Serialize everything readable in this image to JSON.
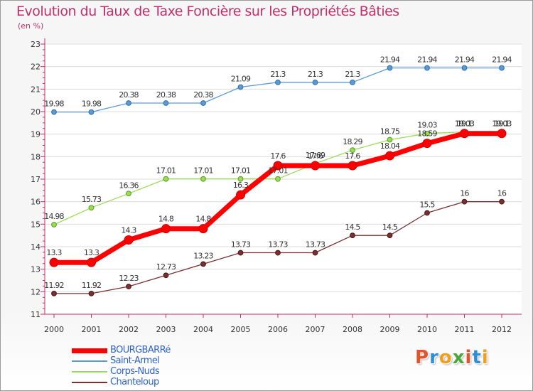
{
  "header": {
    "title": "Evolution du Taux de Taxe Foncière sur les Propriétés Bâties",
    "subtitle": "(en %)"
  },
  "chart_data": {
    "type": "line",
    "title": "Evolution du Taux de Taxe Foncière sur les Propriétés Bâties",
    "subtitle": "(en %)",
    "xlabel": "",
    "ylabel": "(en %)",
    "x": [
      "2000",
      "2001",
      "2002",
      "2003",
      "2004",
      "2005",
      "2006",
      "2007",
      "2008",
      "2009",
      "2010",
      "2011",
      "2012"
    ],
    "ylim": [
      11,
      23
    ],
    "yticks": [
      11,
      12,
      13,
      14,
      15,
      16,
      17,
      18,
      19,
      20,
      21,
      22,
      23
    ],
    "grid": "horizontal",
    "legend_position": "bottom-left",
    "series": [
      {
        "name": "BOURGBARRé",
        "color": "#ff0000",
        "values": [
          13.3,
          13.3,
          14.3,
          14.8,
          14.8,
          16.3,
          17.6,
          17.6,
          17.6,
          18.04,
          18.59,
          19.03,
          19.03
        ],
        "labels": [
          "13.3",
          "13.3",
          "14.3",
          "14.8",
          "14.8",
          "16.3",
          "17.6",
          "17.6",
          "17.6",
          "18.04",
          "18.59",
          "19.03",
          "19.03"
        ]
      },
      {
        "name": "Saint-Armel",
        "color": "#5b9bd5",
        "values": [
          19.98,
          19.98,
          20.38,
          20.38,
          20.38,
          21.09,
          21.3,
          21.3,
          21.3,
          21.94,
          21.94,
          21.94,
          21.94
        ],
        "labels": [
          "19.98",
          "19.98",
          "20.38",
          "20.38",
          "20.38",
          "21.09",
          "21.3",
          "21.3",
          "21.3",
          "21.94",
          "21.94",
          "21.94",
          "21.94"
        ]
      },
      {
        "name": "Corps-Nuds",
        "color": "#99dd55",
        "values": [
          14.98,
          15.73,
          16.36,
          17.01,
          17.01,
          17.01,
          17.01,
          17.69,
          18.29,
          18.75,
          19.03,
          19.1,
          19.1
        ],
        "labels": [
          "14.98",
          "15.73",
          "16.36",
          "17.01",
          "17.01",
          "17.01",
          "17.01",
          "17.69",
          "18.29",
          "18.75",
          "19.03",
          "19.1",
          "19.1"
        ]
      },
      {
        "name": "Chanteloup",
        "color": "#7a3030",
        "values": [
          11.92,
          11.92,
          12.23,
          12.73,
          13.23,
          13.73,
          13.73,
          13.73,
          14.5,
          14.5,
          15.5,
          16,
          16
        ],
        "labels": [
          "11.92",
          "11.92",
          "12.23",
          "12.73",
          "13.23",
          "13.73",
          "13.73",
          "13.73",
          "14.5",
          "14.5",
          "15.5",
          "16",
          "16"
        ]
      }
    ]
  },
  "logo": {
    "letters": [
      "P",
      "r",
      "o",
      "x",
      "i",
      "t",
      "i"
    ],
    "colors": [
      "#e2552b",
      "#2f8fd6",
      "#f0a020",
      "#4aa83b",
      "#e2552b",
      "#2f8fd6",
      "#f0a020"
    ]
  }
}
